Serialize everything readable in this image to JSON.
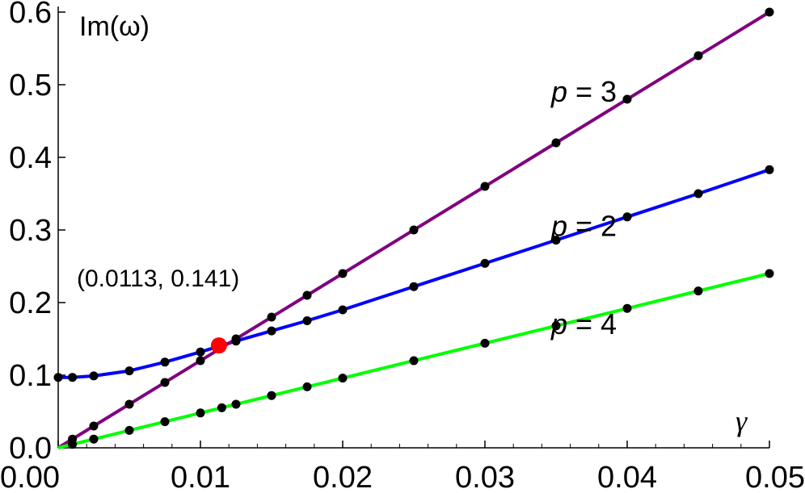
{
  "chart_data": {
    "type": "line",
    "xlabel": "γ",
    "ylabel": "Im(ω)",
    "xlim": [
      0,
      0.05
    ],
    "ylim": [
      0,
      0.6
    ],
    "x_ticks": [
      "0.00",
      "0.01",
      "0.02",
      "0.03",
      "0.04",
      "0.05"
    ],
    "y_ticks": [
      "0.0",
      "0.1",
      "0.2",
      "0.3",
      "0.4",
      "0.5",
      "0.6"
    ],
    "grid": false,
    "series": [
      {
        "name": "p = 2",
        "color": "#0000ff",
        "curve_x": [
          0,
          0.001,
          0.0025,
          0.005,
          0.0075,
          0.01,
          0.0125,
          0.015,
          0.0175,
          0.02,
          0.025,
          0.03,
          0.035,
          0.04,
          0.045,
          0.05
        ],
        "curve_y": [
          0.097,
          0.097,
          0.099,
          0.106,
          0.118,
          0.132,
          0.147,
          0.161,
          0.175,
          0.19,
          0.222,
          0.254,
          0.286,
          0.318,
          0.35,
          0.383
        ],
        "points_x": [
          0,
          0.001,
          0.0025,
          0.005,
          0.0075,
          0.01,
          0.0125,
          0.015,
          0.0175,
          0.02,
          0.025,
          0.03,
          0.035,
          0.04,
          0.045,
          0.05
        ],
        "points_y": [
          0.097,
          0.097,
          0.099,
          0.106,
          0.118,
          0.132,
          0.147,
          0.161,
          0.175,
          0.19,
          0.222,
          0.254,
          0.286,
          0.318,
          0.35,
          0.383
        ],
        "label_position": [
          0.0375,
          0.305
        ]
      },
      {
        "name": "p = 3",
        "color": "#800080",
        "curve_x": [
          0,
          0.05
        ],
        "curve_y": [
          0,
          0.6
        ],
        "points_x": [
          0.001,
          0.0025,
          0.005,
          0.0075,
          0.01,
          0.0125,
          0.015,
          0.0175,
          0.02,
          0.025,
          0.03,
          0.035,
          0.04,
          0.045,
          0.05
        ],
        "points_y": [
          0.012,
          0.03,
          0.06,
          0.09,
          0.12,
          0.15,
          0.18,
          0.21,
          0.24,
          0.3,
          0.36,
          0.42,
          0.48,
          0.54,
          0.6
        ],
        "label_position": [
          0.0375,
          0.49
        ]
      },
      {
        "name": "p = 4",
        "color": "#00ff00",
        "curve_x": [
          0,
          0.05
        ],
        "curve_y": [
          0,
          0.24
        ],
        "points_x": [
          0.001,
          0.0025,
          0.005,
          0.0075,
          0.01,
          0.0115,
          0.0125,
          0.015,
          0.0175,
          0.02,
          0.025,
          0.03,
          0.035,
          0.04,
          0.045,
          0.05
        ],
        "points_y": [
          0.0048,
          0.012,
          0.024,
          0.036,
          0.048,
          0.0552,
          0.06,
          0.072,
          0.084,
          0.096,
          0.12,
          0.144,
          0.168,
          0.192,
          0.216,
          0.24
        ],
        "label_position": [
          0.0375,
          0.17
        ]
      }
    ],
    "highlight": {
      "x": 0.0113,
      "y": 0.141,
      "color": "#ff0000",
      "label": "(0.0113, 0.141)",
      "label_position": [
        0.0012,
        0.22
      ]
    }
  }
}
